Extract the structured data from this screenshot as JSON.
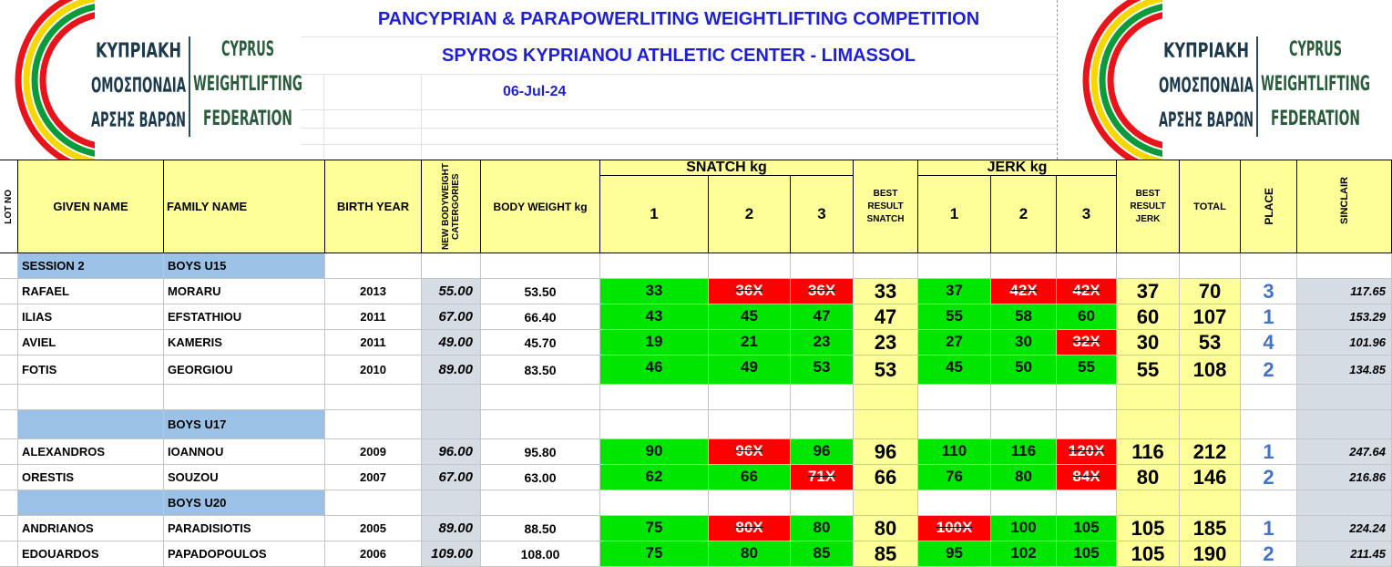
{
  "header": {
    "logo": {
      "greek": [
        "ΚΥΠΡΙΑΚΗ",
        "ΟΜΟΣΠΟΝΔΙΑ",
        "ΑΡΣΗΣ ΒΑΡΩΝ"
      ],
      "english": [
        "CYPRUS",
        "WEIGHTLIFTING",
        "FEDERATION"
      ]
    },
    "title": "PANCYPRIAN & PARAPOWERLITING WEIGHTLIFTING COMPETITION",
    "subtitle": "SPYROS KYPRIANOU ATHLETIC CENTER - LIMASSOL",
    "date": "06-Jul-24"
  },
  "table": {
    "columns": {
      "lot": "LOT NO",
      "given": "GIVEN NAME",
      "family": "FAMILY NAME",
      "year": "BIRTH YEAR",
      "category": "NEW BODYWEIGHT CATERGORIES",
      "bodyweight": "BODY WEIGHT kg",
      "snatch": "SNATCH kg",
      "best_snatch": "BEST RESULT SNATCH",
      "jerk": "JERK kg",
      "best_jerk": "BEST RESULT JERK",
      "total": "TOTAL",
      "place": "PLACE",
      "sinclair": "SINCLAIR"
    },
    "attempt_numbers": [
      "1",
      "2",
      "3"
    ],
    "rows": [
      {
        "section": "SESSION 2",
        "group": "BOYS U15"
      },
      {
        "given": "RAFAEL",
        "family": "MORARU",
        "year": "2013",
        "category": "55.00",
        "bodyweight": "53.50",
        "snatch": [
          "33",
          "36X",
          "36X"
        ],
        "snatch_fill": [
          "#00e600",
          "#ff0000",
          "#ff0000"
        ],
        "best_snatch": "33",
        "jerk": [
          "37",
          "42X",
          "42X"
        ],
        "jerk_fill": [
          "#00e600",
          "#ff0000",
          "#ff0000"
        ],
        "best_jerk": "37",
        "total": "70",
        "place": "3",
        "sinclair": "117.65"
      },
      {
        "given": "ILIAS",
        "family": "EFSTATHIOU",
        "year": "2011",
        "category": "67.00",
        "bodyweight": "66.40",
        "snatch": [
          "43",
          "45",
          "47"
        ],
        "snatch_fill": [
          "#00e600",
          "#00e600",
          "#00e600"
        ],
        "best_snatch": "47",
        "jerk": [
          "55",
          "58",
          "60"
        ],
        "jerk_fill": [
          "#00e600",
          "#00e600",
          "#00e600"
        ],
        "best_jerk": "60",
        "total": "107",
        "place": "1",
        "sinclair": "153.29"
      },
      {
        "given": "AVIEL",
        "family": "KAMERIS",
        "year": "2011",
        "category": "49.00",
        "bodyweight": "45.70",
        "snatch": [
          "19",
          "21",
          "23"
        ],
        "snatch_fill": [
          "#00e600",
          "#00e600",
          "#00e600"
        ],
        "best_snatch": "23",
        "jerk": [
          "27",
          "30",
          "32X"
        ],
        "jerk_fill": [
          "#00e600",
          "#00e600",
          "#ff0000"
        ],
        "best_jerk": "30",
        "total": "53",
        "place": "4",
        "sinclair": "101.96"
      },
      {
        "given": "FOTIS",
        "family": "GEORGIOU",
        "year": "2010",
        "category": "89.00",
        "bodyweight": "83.50",
        "snatch": [
          "46",
          "49",
          "53"
        ],
        "snatch_fill": [
          "#00e600",
          "#00e600",
          "#00e600"
        ],
        "best_snatch": "53",
        "jerk": [
          "45",
          "50",
          "55"
        ],
        "jerk_fill": [
          "#00e600",
          "#00e600",
          "#00e600"
        ],
        "best_jerk": "55",
        "total": "108",
        "place": "2",
        "sinclair": "134.85"
      },
      {
        "group": "BOYS U17"
      },
      {
        "given": "ALEXANDROS",
        "family": "IOANNOU",
        "year": "2009",
        "category": "96.00",
        "bodyweight": "95.80",
        "snatch": [
          "90",
          "96X",
          "96"
        ],
        "snatch_fill": [
          "#00e600",
          "#ff0000",
          "#00e600"
        ],
        "best_snatch": "96",
        "jerk": [
          "110",
          "116",
          "120X"
        ],
        "jerk_fill": [
          "#00e600",
          "#00e600",
          "#ff0000"
        ],
        "best_jerk": "116",
        "total": "212",
        "place": "1",
        "sinclair": "247.64"
      },
      {
        "given": "ORESTIS",
        "family": "SOUZOU",
        "year": "2007",
        "category": "67.00",
        "bodyweight": "63.00",
        "snatch": [
          "62",
          "66",
          "71X"
        ],
        "snatch_fill": [
          "#00e600",
          "#00e600",
          "#ff0000"
        ],
        "best_snatch": "66",
        "jerk": [
          "76",
          "80",
          "84X"
        ],
        "jerk_fill": [
          "#00e600",
          "#00e600",
          "#ff0000"
        ],
        "best_jerk": "80",
        "total": "146",
        "place": "2",
        "sinclair": "216.86"
      },
      {
        "group": "BOYS U20"
      },
      {
        "given": "ANDRIANOS",
        "family": "PARADISIOTIS",
        "year": "2005",
        "category": "89.00",
        "bodyweight": "88.50",
        "snatch": [
          "75",
          "80X",
          "80"
        ],
        "snatch_fill": [
          "#00e600",
          "#ff0000",
          "#00e600"
        ],
        "best_snatch": "80",
        "jerk": [
          "100X",
          "100",
          "105"
        ],
        "jerk_fill": [
          "#ff0000",
          "#00e600",
          "#00e600"
        ],
        "best_jerk": "105",
        "total": "185",
        "place": "1",
        "sinclair": "224.24"
      },
      {
        "given": "EDOUARDOS",
        "family": "PAPADOPOULOS",
        "year": "2006",
        "category": "109.00",
        "bodyweight": "108.00",
        "snatch": [
          "75",
          "80",
          "85"
        ],
        "snatch_fill": [
          "#00e600",
          "#00e600",
          "#00e600"
        ],
        "best_snatch": "85",
        "jerk": [
          "95",
          "102",
          "105"
        ],
        "jerk_fill": [
          "#00e600",
          "#00e600",
          "#00e600"
        ],
        "best_jerk": "105",
        "total": "190",
        "place": "2",
        "sinclair": "211.45"
      }
    ]
  }
}
